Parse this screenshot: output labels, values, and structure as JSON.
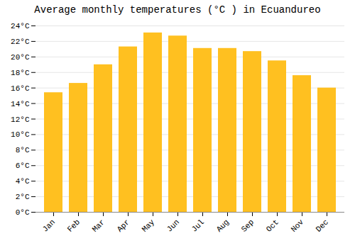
{
  "chart_data": {
    "type": "bar",
    "title": "Average monthly temperatures (°C ) in Ecuandureo",
    "categories": [
      "Jan",
      "Feb",
      "Mar",
      "Apr",
      "May",
      "Jun",
      "Jul",
      "Aug",
      "Sep",
      "Oct",
      "Nov",
      "Dec"
    ],
    "values": [
      15.4,
      16.6,
      19.0,
      21.3,
      23.1,
      22.7,
      21.1,
      21.1,
      20.7,
      19.5,
      17.6,
      16.0
    ],
    "color": "#FFC020",
    "ylim": [
      0,
      24
    ],
    "yticks": [
      {
        "value": 0,
        "label": "0°C"
      },
      {
        "value": 2,
        "label": "2°C"
      },
      {
        "value": 4,
        "label": "4°C"
      },
      {
        "value": 6,
        "label": "6°C"
      },
      {
        "value": 8,
        "label": "8°C"
      },
      {
        "value": 10,
        "label": "10°C"
      },
      {
        "value": 12,
        "label": "12°C"
      },
      {
        "value": 14,
        "label": "14°C"
      },
      {
        "value": 16,
        "label": "16°C"
      },
      {
        "value": 18,
        "label": "18°C"
      },
      {
        "value": 20,
        "label": "20°C"
      },
      {
        "value": 22,
        "label": "22°C"
      },
      {
        "value": 24,
        "label": "24°C"
      }
    ],
    "grid": true
  }
}
